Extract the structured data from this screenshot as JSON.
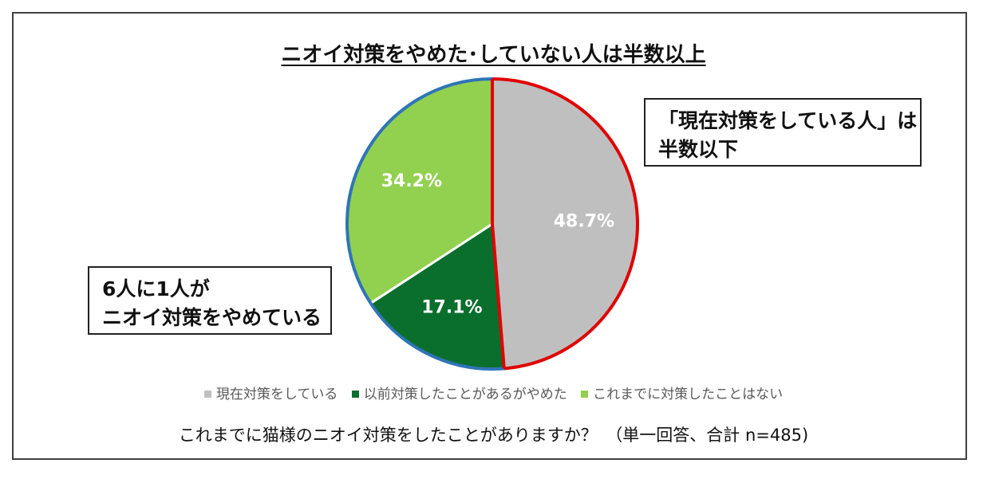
{
  "chart_data": {
    "type": "pie",
    "title": "ニオイ対策をやめた･していない人は半数以上",
    "slices": [
      {
        "name": "現在対策をしている",
        "value": 48.7,
        "label": "48.7%",
        "color": "#bfbfbf",
        "outline": "#e00000"
      },
      {
        "name": "以前対策したことがあるがやめた",
        "value": 17.1,
        "label": "17.1%",
        "color": "#0a6e2c",
        "outline": "#2e75b6"
      },
      {
        "name": "これまでに対策したことはない",
        "value": 34.2,
        "label": "34.2%",
        "color": "#92d050",
        "outline": "#2e75b6"
      }
    ],
    "legend_position": "bottom"
  },
  "callouts": {
    "right": {
      "line1": "「現在対策をしている人」は",
      "line2": "半数以下"
    },
    "left": {
      "line1": "6人に1人が",
      "line2": "ニオイ対策をやめている"
    }
  },
  "footer": {
    "question": "これまでに猫様のニオイ対策をしたことがありますか？　（単一回答、合計 n=485)"
  }
}
